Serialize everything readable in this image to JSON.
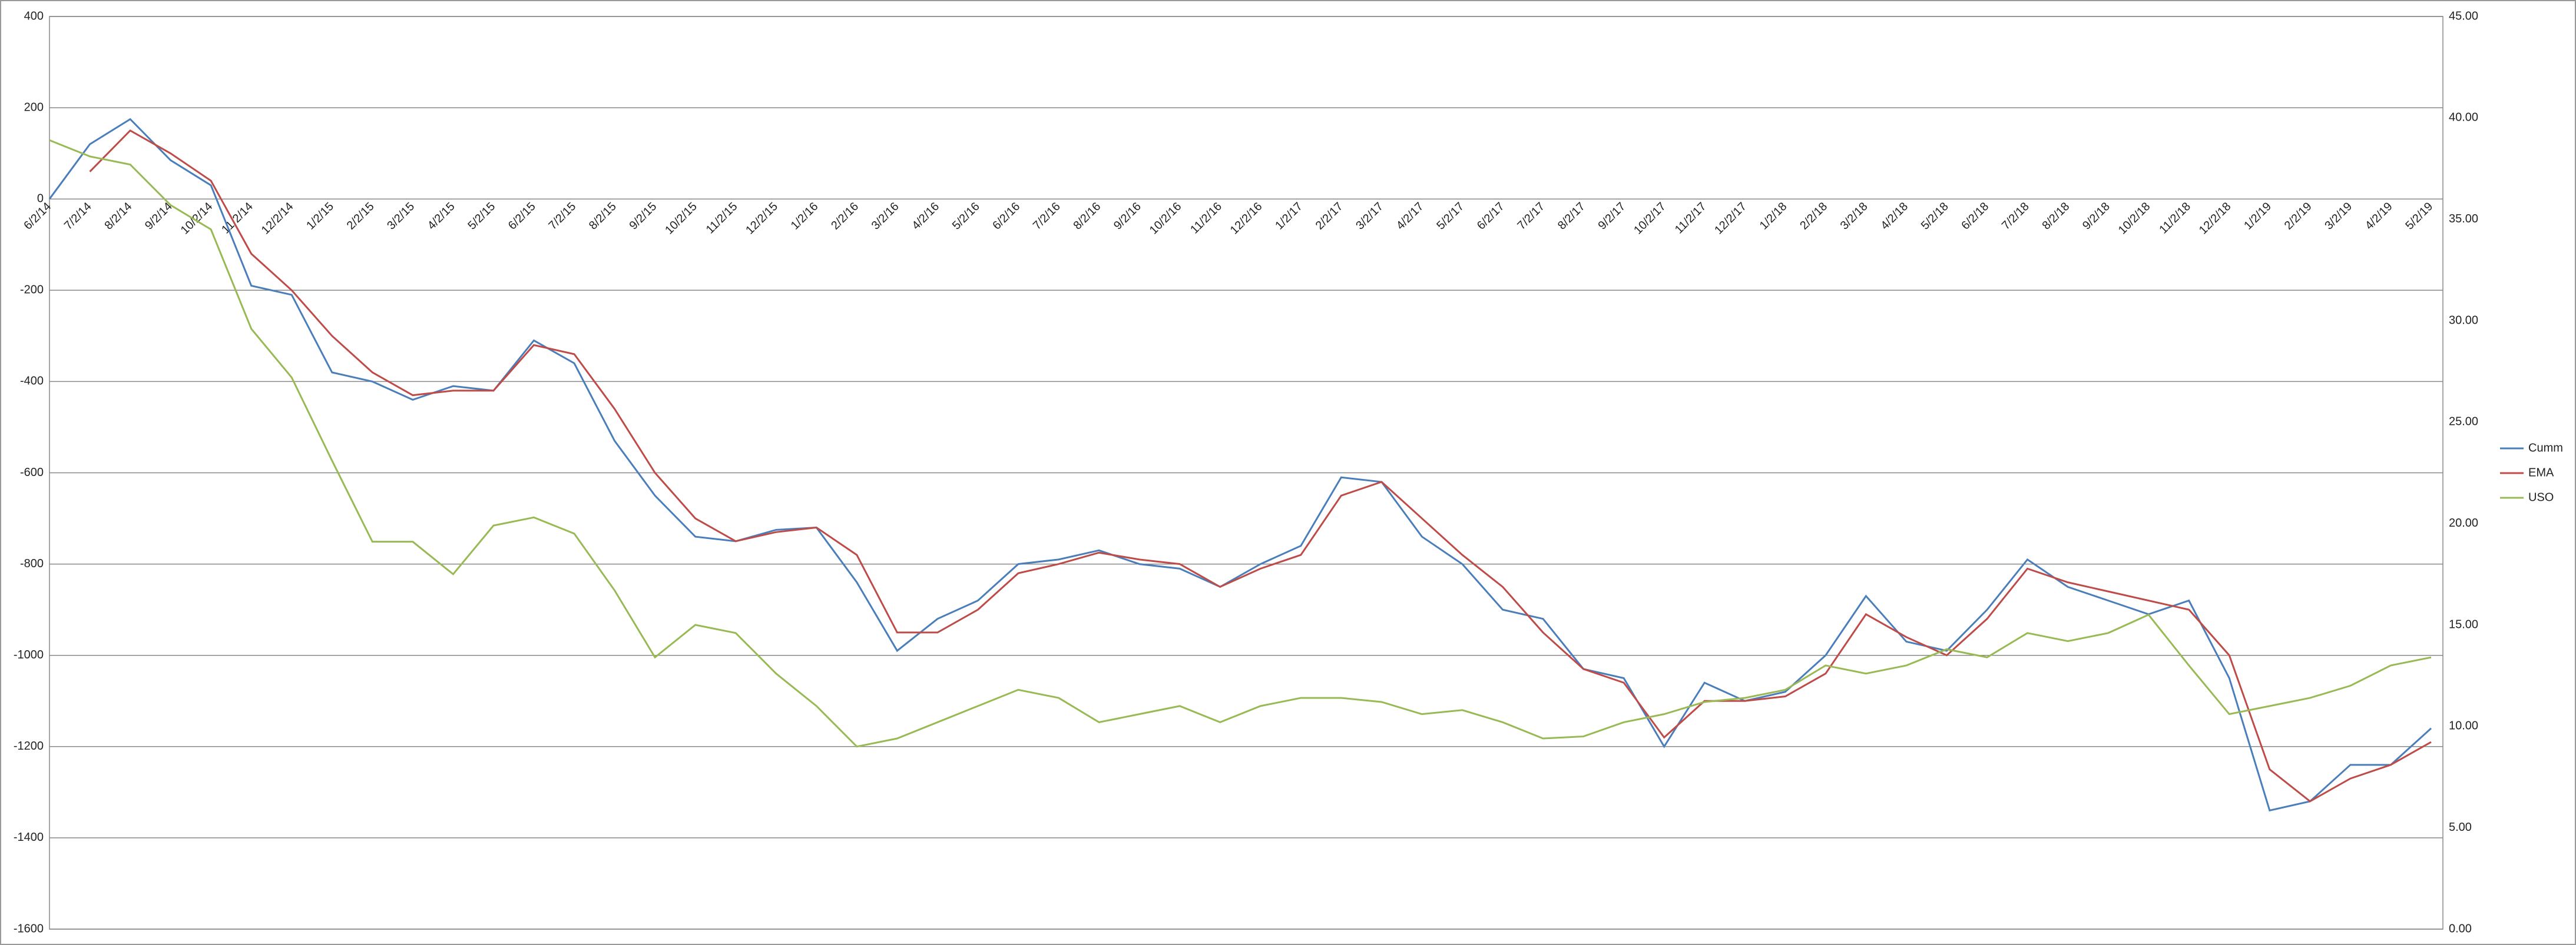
{
  "chart_data": {
    "type": "line",
    "categories": [
      "6/2/14",
      "7/2/14",
      "8/2/14",
      "9/2/14",
      "10/2/14",
      "11/2/14",
      "12/2/14",
      "1/2/15",
      "2/2/15",
      "3/2/15",
      "4/2/15",
      "5/2/15",
      "6/2/15",
      "7/2/15",
      "8/2/15",
      "9/2/15",
      "10/2/15",
      "11/2/15",
      "12/2/15",
      "1/2/16",
      "2/2/16",
      "3/2/16",
      "4/2/16",
      "5/2/16",
      "6/2/16",
      "7/2/16",
      "8/2/16",
      "9/2/16",
      "10/2/16",
      "11/2/16",
      "12/2/16",
      "1/2/17",
      "2/2/17",
      "3/2/17",
      "4/2/17",
      "5/2/17",
      "6/2/17",
      "7/2/17",
      "8/2/17",
      "9/2/17",
      "10/2/17",
      "11/2/17",
      "12/2/17",
      "1/2/18",
      "2/2/18",
      "3/2/18",
      "4/2/18",
      "5/2/18",
      "6/2/18",
      "7/2/18",
      "8/2/18",
      "9/2/18",
      "10/2/18",
      "11/2/18",
      "12/2/18",
      "1/2/19",
      "2/2/19",
      "3/2/19",
      "4/2/19",
      "5/2/19"
    ],
    "series": [
      {
        "name": "Cumm",
        "color": "#4a7ebb",
        "values": [
          0,
          120,
          175,
          85,
          30,
          -190,
          -210,
          -380,
          -400,
          -440,
          -410,
          -420,
          -310,
          -360,
          -530,
          -650,
          -740,
          -750,
          -725,
          -720,
          -840,
          -990,
          -920,
          -880,
          -800,
          -790,
          -770,
          -800,
          -810,
          -850,
          -800,
          -760,
          -610,
          -620,
          -740,
          -800,
          -900,
          -920,
          -1030,
          -1050,
          -1200,
          -1060,
          -1100,
          -1080,
          -1000,
          -870,
          -970,
          -990,
          -900,
          -790,
          -850,
          -880,
          -910,
          -880,
          -1050,
          -1340,
          -1320,
          -1240,
          -1240,
          -1160
        ]
      },
      {
        "name": "EMA",
        "color": "#be4b48",
        "values": [
          null,
          60,
          150,
          100,
          40,
          -120,
          -200,
          -300,
          -380,
          -430,
          -420,
          -420,
          -320,
          -340,
          -460,
          -600,
          -700,
          -750,
          -730,
          -720,
          -780,
          -950,
          -950,
          -900,
          -820,
          -800,
          -775,
          -790,
          -800,
          -850,
          -810,
          -780,
          -650,
          -620,
          -700,
          -780,
          -850,
          -950,
          -1030,
          -1060,
          -1180,
          -1100,
          -1100,
          -1090,
          -1040,
          -910,
          -960,
          -1000,
          -920,
          -810,
          -840,
          -860,
          -880,
          -900,
          -1000,
          -1250,
          -1320,
          -1270,
          -1240,
          -1190
        ]
      },
      {
        "name": "USO",
        "color": "#98b954",
        "axis": "y2",
        "values": [
          38.9,
          38.1,
          37.7,
          35.7,
          34.5,
          29.6,
          27.2,
          23.1,
          19.1,
          19.1,
          17.5,
          19.9,
          20.3,
          19.5,
          16.7,
          13.4,
          15.0,
          14.6,
          12.6,
          11.0,
          9.0,
          9.4,
          10.2,
          11.0,
          11.8,
          11.4,
          10.2,
          10.6,
          11.0,
          10.2,
          11.0,
          11.4,
          11.4,
          11.2,
          10.6,
          10.8,
          10.2,
          9.4,
          9.5,
          10.2,
          10.6,
          11.2,
          11.4,
          11.8,
          13.0,
          12.6,
          13.0,
          13.8,
          13.4,
          14.6,
          14.2,
          14.6,
          15.5,
          13.0,
          10.6,
          11.0,
          11.4,
          12.0,
          13.0,
          13.4
        ]
      }
    ],
    "ylim": [
      -1600,
      400
    ],
    "yticks": [
      -1600,
      -1400,
      -1200,
      -1000,
      -800,
      -600,
      -400,
      -200,
      0,
      200,
      400
    ],
    "y2lim": [
      0,
      45
    ],
    "y2ticks": [
      {
        "value": 0,
        "label": "0.00"
      },
      {
        "value": 5,
        "label": "5.00"
      },
      {
        "value": 10,
        "label": "10.00"
      },
      {
        "value": 15,
        "label": "15.00"
      },
      {
        "value": 20,
        "label": "20.00"
      },
      {
        "value": 25,
        "label": "25.00"
      },
      {
        "value": 30,
        "label": "30.00"
      },
      {
        "value": 35,
        "label": "35.00"
      },
      {
        "value": 40,
        "label": "40.00"
      },
      {
        "value": 45,
        "label": "45.00"
      }
    ],
    "grid": true,
    "legend": "right"
  }
}
